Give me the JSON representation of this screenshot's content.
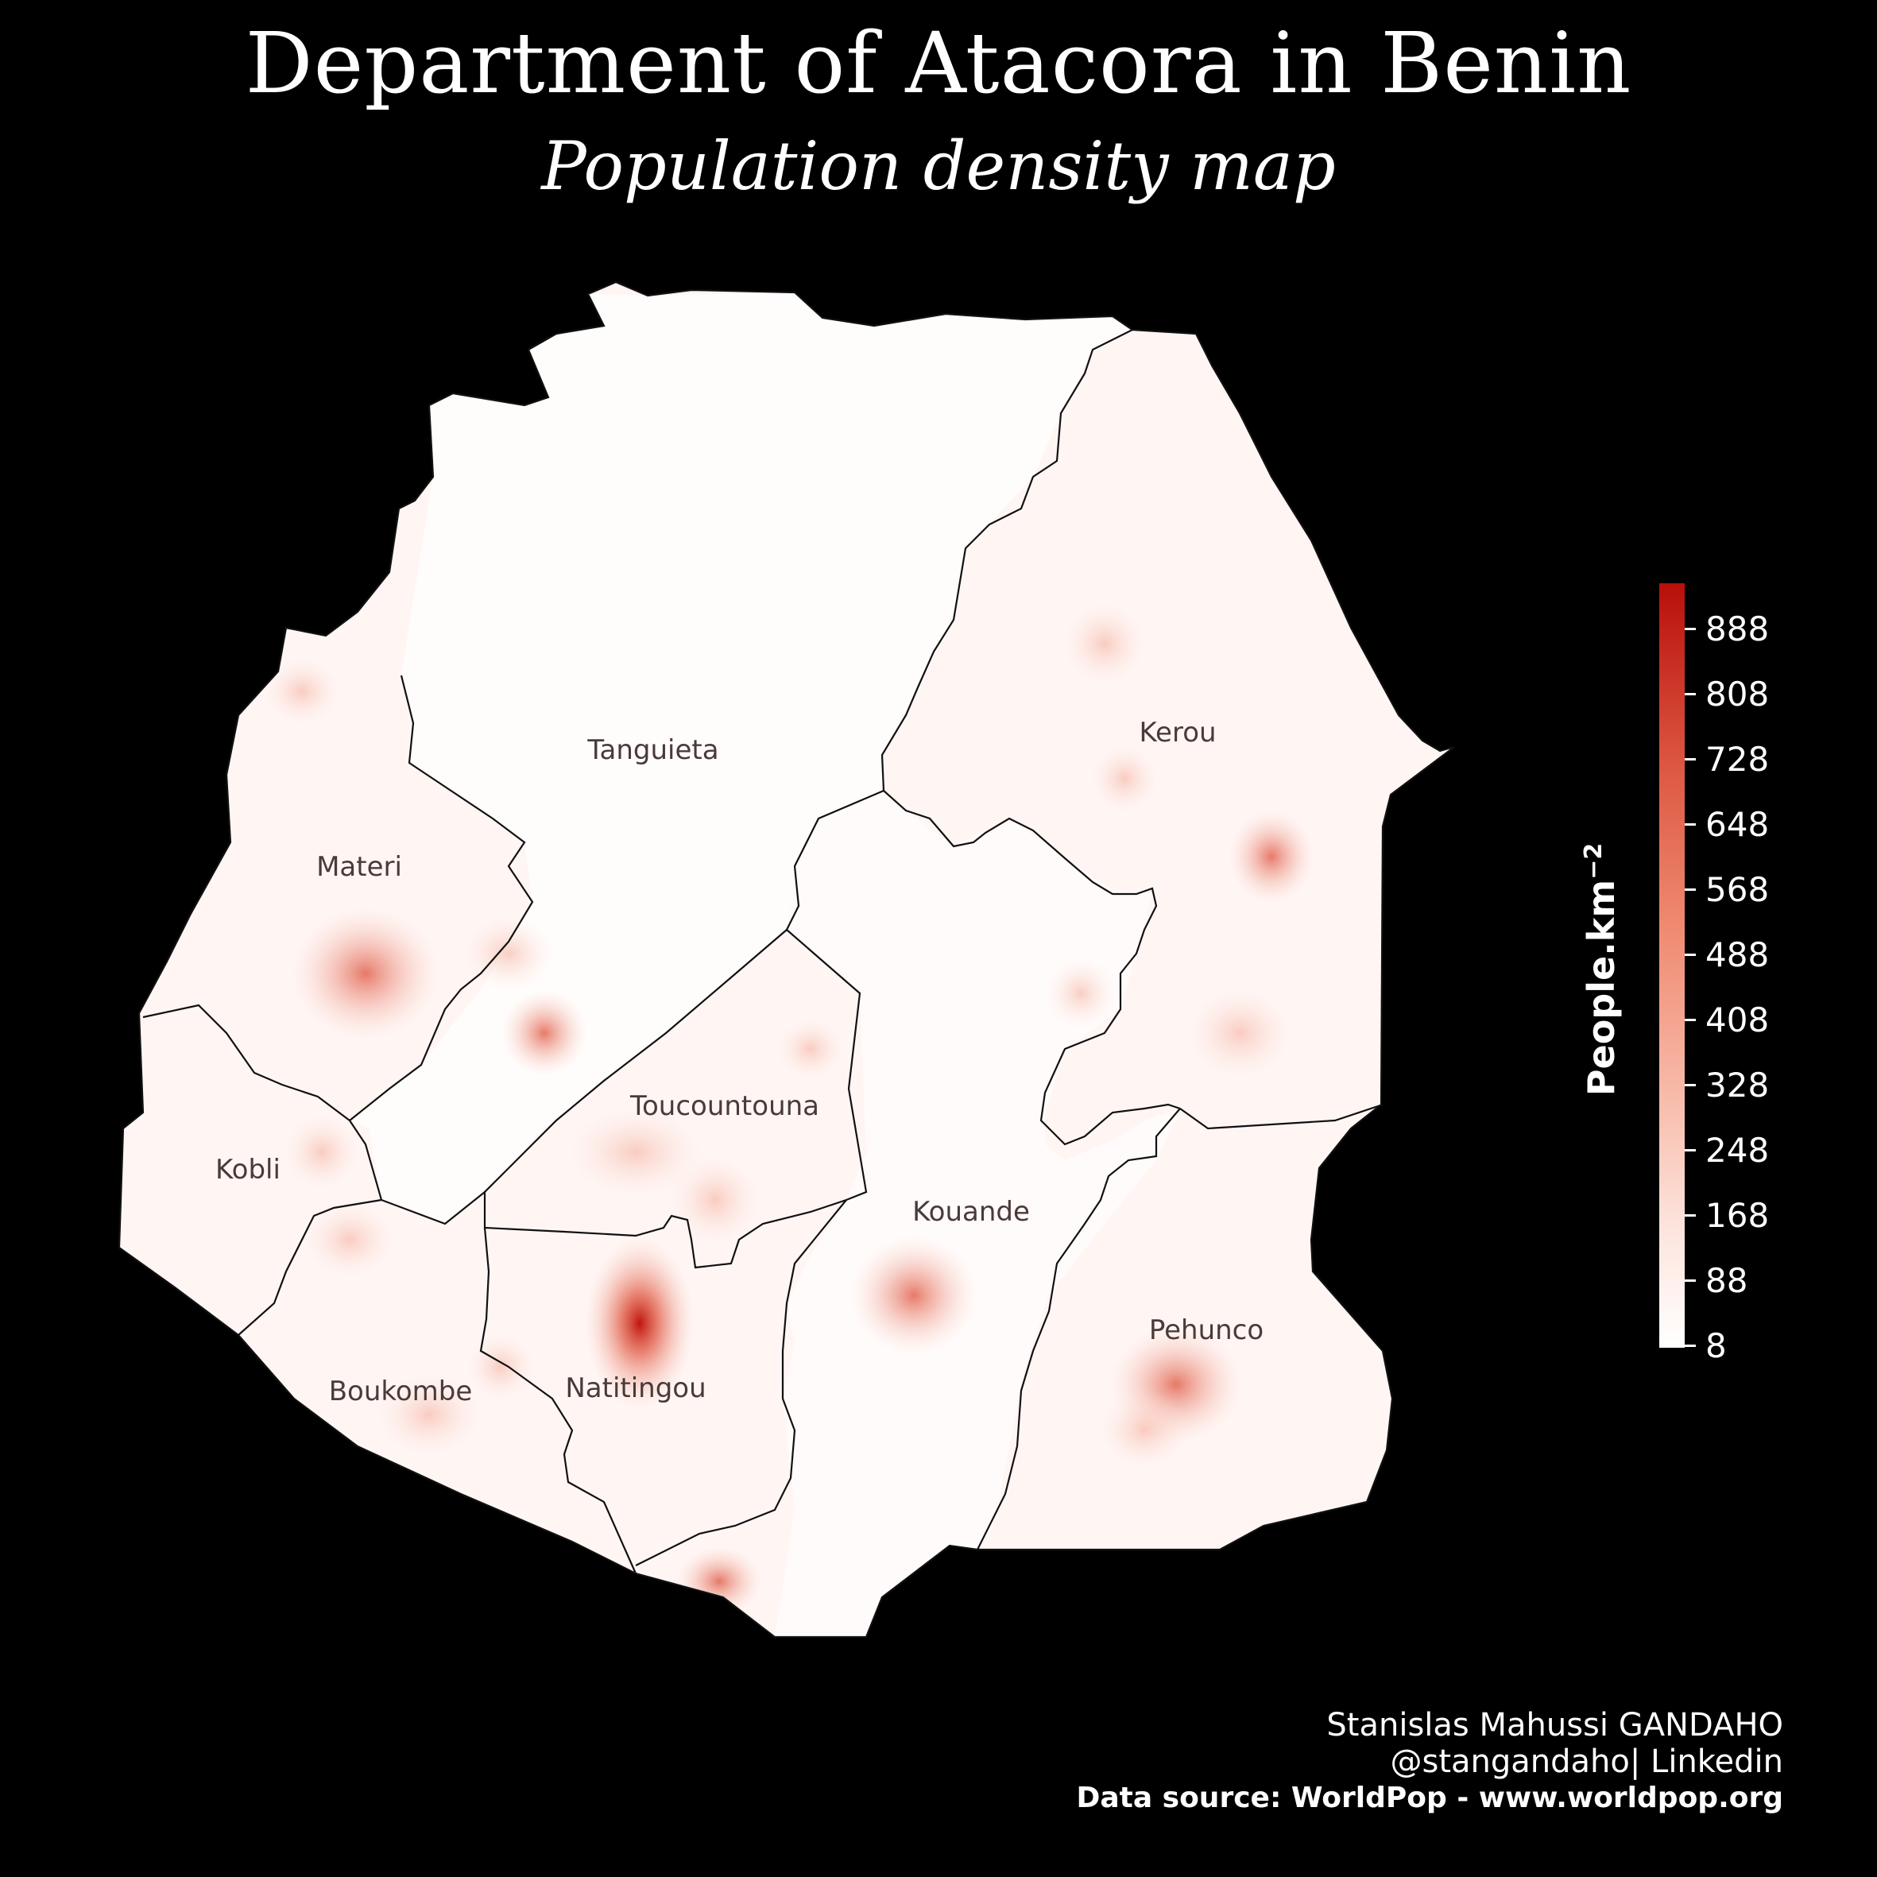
{
  "title": "Department of Atacora in Benin",
  "subtitle": "Population density map",
  "legend": {
    "title": "People.km",
    "title_superscript": "−2",
    "ticks": [
      "888",
      "808",
      "728",
      "648",
      "568",
      "488",
      "408",
      "328",
      "248",
      "168",
      "88",
      "8"
    ],
    "color_low": "#ffffff",
    "color_high": "#b80f0a"
  },
  "regions": [
    {
      "name": "Tanguieta"
    },
    {
      "name": "Kerou"
    },
    {
      "name": "Materi"
    },
    {
      "name": "Toucountouna"
    },
    {
      "name": "Kobli"
    },
    {
      "name": "Kouande"
    },
    {
      "name": "Pehunco"
    },
    {
      "name": "Boukombe"
    },
    {
      "name": "Natitingou"
    }
  ],
  "credits": {
    "author": "Stanislas Mahussi GANDAHO",
    "handle": "@stangandaho| Linkedin",
    "source": "Data source: WorldPop - www.worldpop.org"
  }
}
